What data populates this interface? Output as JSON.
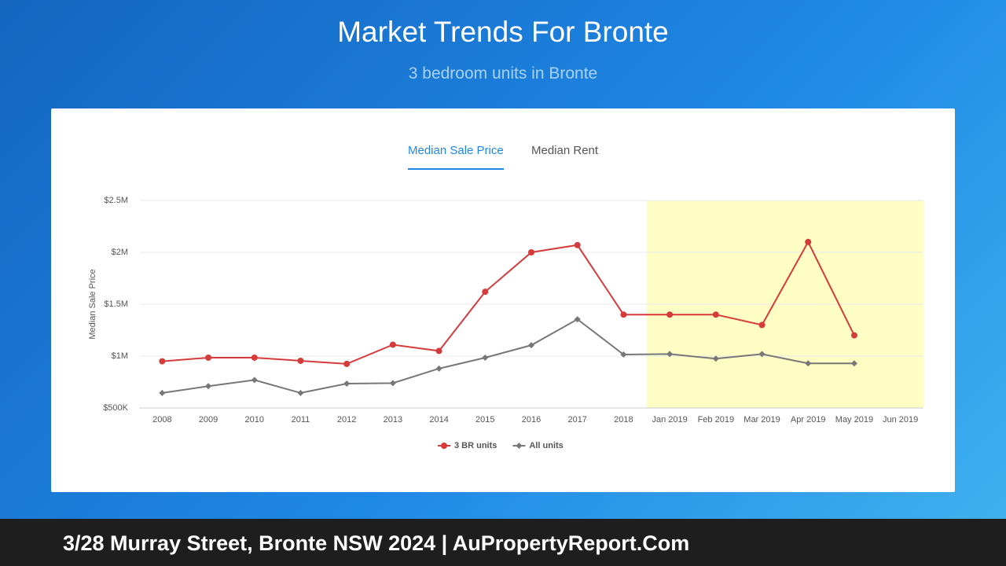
{
  "header": {
    "title": "Market Trends For Bronte",
    "subtitle": "3 bedroom units in Bronte"
  },
  "tabs": [
    "Median Sale Price",
    "Median Rent"
  ],
  "footer": "3/28 Murray Street, Bronte NSW 2024 | AuPropertyReport.Com",
  "chart_data": {
    "type": "line",
    "y_label": "Median Sale Price",
    "categories": [
      "2008",
      "2009",
      "2010",
      "2011",
      "2012",
      "2013",
      "2014",
      "2015",
      "2016",
      "2017",
      "2018",
      "Jan 2019",
      "Feb 2019",
      "Mar 2019",
      "Apr 2019",
      "May 2019",
      "Jun 2019"
    ],
    "series": [
      {
        "name": "3 BR units",
        "color": "#d63b3b",
        "marker": "circle",
        "values": [
          950000,
          985000,
          985000,
          955000,
          925000,
          1110000,
          1050000,
          1620000,
          2000000,
          2070000,
          1400000,
          1400000,
          1400000,
          1300000,
          2100000,
          1200000,
          null
        ]
      },
      {
        "name": "All units",
        "color": "#777777",
        "marker": "diamond",
        "values": [
          645000,
          710000,
          770000,
          645000,
          735000,
          740000,
          880000,
          985000,
          1105000,
          1355000,
          1015000,
          1020000,
          975000,
          1020000,
          930000,
          930000,
          null
        ]
      }
    ],
    "ylim": [
      500000,
      2500000
    ],
    "yticks": [
      {
        "value": 500000,
        "label": "$500K"
      },
      {
        "value": 1000000,
        "label": "$1M"
      },
      {
        "value": 1500000,
        "label": "$1.5M"
      },
      {
        "value": 2000000,
        "label": "$2M"
      },
      {
        "value": 2500000,
        "label": "$2.5M"
      }
    ],
    "grid": true,
    "legend": "bottom"
  }
}
